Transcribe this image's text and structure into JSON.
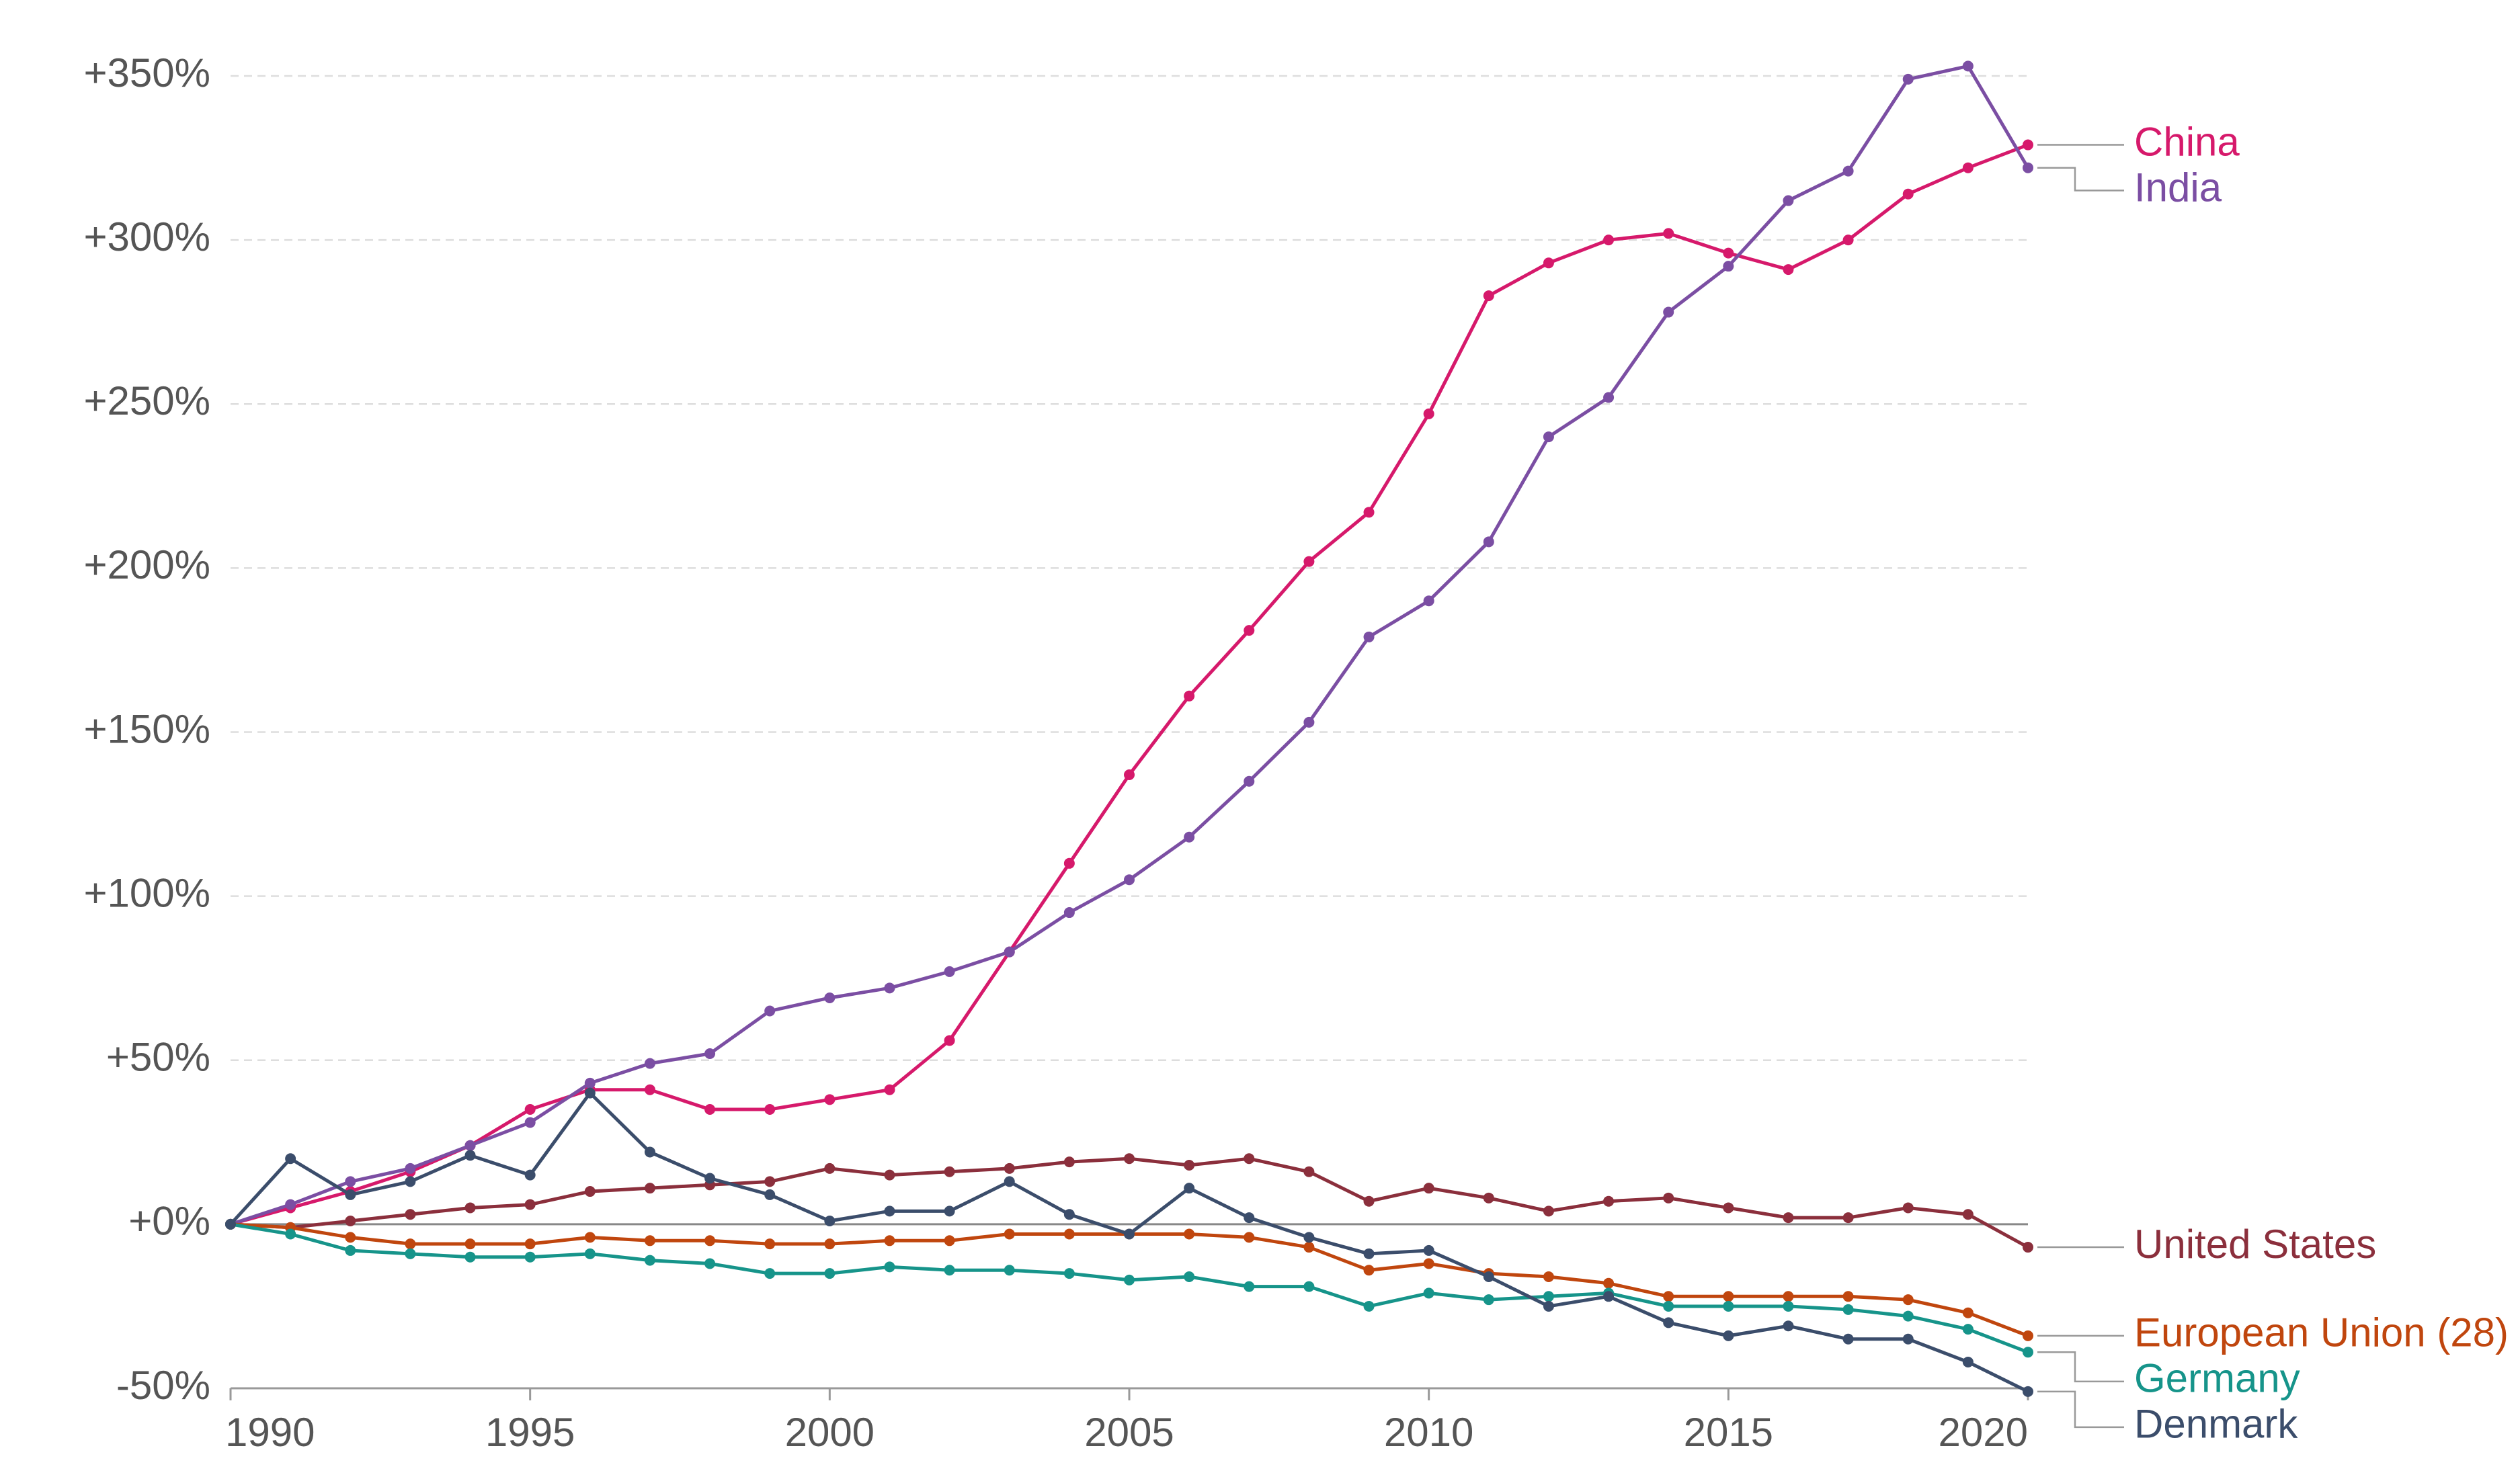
{
  "chart_data": {
    "type": "line",
    "x": [
      1990,
      1991,
      1992,
      1993,
      1994,
      1995,
      1996,
      1997,
      1998,
      1999,
      2000,
      2001,
      2002,
      2003,
      2004,
      2005,
      2006,
      2007,
      2008,
      2009,
      2010,
      2011,
      2012,
      2013,
      2014,
      2015,
      2016,
      2017,
      2018,
      2019,
      2020
    ],
    "xlim": [
      1990,
      2020
    ],
    "xticks": [
      1990,
      1995,
      2000,
      2005,
      2010,
      2015,
      2020
    ],
    "ylim": [
      -50,
      350
    ],
    "yticks": [
      {
        "value": -50,
        "label": "-50%"
      },
      {
        "value": 0,
        "label": "+0%"
      },
      {
        "value": 50,
        "label": "+50%"
      },
      {
        "value": 100,
        "label": "+100%"
      },
      {
        "value": 150,
        "label": "+150%"
      },
      {
        "value": 200,
        "label": "+200%"
      },
      {
        "value": 250,
        "label": "+250%"
      },
      {
        "value": 300,
        "label": "+300%"
      },
      {
        "value": 350,
        "label": "+350%"
      }
    ],
    "grid": true,
    "series": [
      {
        "name": "China",
        "color": "#d6196b",
        "values": [
          0,
          5,
          10,
          16,
          24,
          35,
          41,
          41,
          35,
          35,
          38,
          41,
          56,
          83,
          110,
          137,
          161,
          181,
          202,
          217,
          247,
          283,
          293,
          300,
          302,
          296,
          291,
          300,
          314,
          322,
          329
        ]
      },
      {
        "name": "India",
        "color": "#7b4ea3",
        "values": [
          0,
          6,
          13,
          17,
          24,
          31,
          43,
          49,
          52,
          65,
          69,
          72,
          77,
          83,
          95,
          105,
          118,
          135,
          153,
          179,
          190,
          208,
          240,
          252,
          278,
          292,
          312,
          321,
          349,
          353,
          322
        ]
      },
      {
        "name": "United States",
        "color": "#8b2f3c",
        "values": [
          0,
          -1,
          1,
          3,
          5,
          6,
          10,
          11,
          12,
          13,
          17,
          15,
          16,
          17,
          19,
          20,
          18,
          20,
          16,
          7,
          11,
          8,
          4,
          7,
          8,
          5,
          2,
          2,
          5,
          3,
          -7
        ]
      },
      {
        "name": "European Union (28)",
        "color": "#c0460e",
        "values": [
          0,
          -1,
          -4,
          -6,
          -6,
          -6,
          -4,
          -5,
          -5,
          -6,
          -6,
          -5,
          -5,
          -3,
          -3,
          -3,
          -3,
          -4,
          -7,
          -14,
          -12,
          -15,
          -16,
          -18,
          -22,
          -22,
          -22,
          -22,
          -23,
          -27,
          -34
        ]
      },
      {
        "name": "Germany",
        "color": "#16948a",
        "values": [
          0,
          -3,
          -8,
          -9,
          -10,
          -10,
          -9,
          -11,
          -12,
          -15,
          -15,
          -13,
          -14,
          -14,
          -15,
          -17,
          -16,
          -19,
          -19,
          -25,
          -21,
          -23,
          -22,
          -21,
          -25,
          -25,
          -25,
          -26,
          -28,
          -32,
          -39
        ]
      },
      {
        "name": "Denmark",
        "color": "#3b4d6b",
        "values": [
          0,
          20,
          9,
          13,
          21,
          15,
          40,
          22,
          14,
          9,
          1,
          4,
          4,
          13,
          3,
          -3,
          11,
          2,
          -4,
          -9,
          -8,
          -16,
          -25,
          -22,
          -30,
          -34,
          -31,
          -35,
          -35,
          -42,
          -51
        ]
      }
    ]
  }
}
